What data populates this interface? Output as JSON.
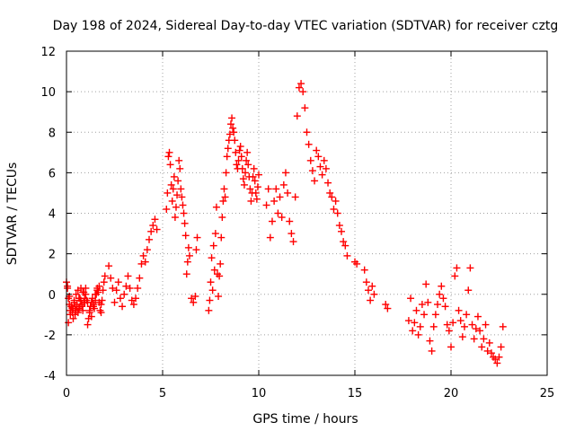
{
  "chart_data": {
    "type": "scatter",
    "title": "Day 198 of 2024, Sidereal Day-to-day VTEC variation (SDTVAR) for receiver cztg",
    "xlabel": "GPS time / hours",
    "ylabel": "SDTVAR / TECUs",
    "xlim": [
      0,
      25
    ],
    "ylim": [
      -4,
      12
    ],
    "xticks": [
      0,
      5,
      10,
      15,
      20,
      25
    ],
    "yticks": [
      -4,
      -2,
      0,
      2,
      4,
      6,
      8,
      10,
      12
    ],
    "grid": true,
    "marker": "+",
    "color": "#ff0000",
    "series": [
      {
        "name": "SDTVAR",
        "x": [
          0.0,
          0.05,
          0.1,
          0.15,
          0.2,
          0.25,
          0.3,
          0.35,
          0.4,
          0.45,
          0.5,
          0.55,
          0.6,
          0.65,
          0.7,
          0.75,
          0.8,
          0.85,
          0.9,
          0.95,
          1.0,
          1.05,
          1.1,
          1.15,
          1.2,
          1.25,
          1.3,
          1.35,
          1.4,
          1.45,
          1.5,
          1.55,
          1.6,
          1.65,
          1.7,
          1.75,
          1.8,
          1.85,
          1.9,
          1.95,
          2.0,
          0.1,
          0.2,
          0.3,
          0.4,
          0.5,
          0.6,
          0.7,
          0.8,
          0.9,
          1.0,
          1.1,
          1.2,
          1.3,
          1.4,
          1.5,
          1.6,
          1.7,
          1.8,
          0.05,
          0.15,
          0.25,
          0.35,
          0.45,
          0.55,
          0.65,
          0.75,
          0.85,
          0.95,
          2.2,
          2.3,
          2.4,
          2.5,
          2.6,
          2.7,
          2.8,
          2.9,
          3.0,
          3.1,
          3.2,
          3.3,
          3.4,
          3.5,
          3.6,
          3.7,
          3.8,
          3.9,
          4.0,
          4.1,
          4.2,
          4.3,
          4.4,
          4.5,
          4.6,
          4.7,
          5.2,
          5.25,
          5.3,
          5.35,
          5.4,
          5.45,
          5.5,
          5.55,
          5.6,
          5.65,
          5.7,
          5.75,
          5.8,
          5.85,
          5.9,
          5.95,
          6.0,
          6.05,
          6.1,
          6.15,
          6.2,
          6.25,
          6.3,
          6.35,
          6.4,
          6.5,
          6.6,
          6.7,
          6.75,
          6.8,
          7.4,
          7.45,
          7.5,
          7.55,
          7.6,
          7.65,
          7.7,
          7.75,
          7.8,
          7.85,
          7.9,
          7.95,
          8.0,
          8.05,
          8.1,
          8.15,
          8.2,
          8.25,
          8.3,
          8.35,
          8.4,
          8.45,
          8.5,
          8.55,
          8.6,
          8.65,
          8.7,
          8.75,
          8.8,
          8.85,
          8.9,
          8.95,
          9.0,
          9.05,
          9.1,
          9.15,
          9.2,
          9.25,
          9.3,
          9.35,
          9.4,
          9.45,
          9.5,
          9.55,
          9.6,
          9.65,
          9.7,
          9.75,
          9.8,
          9.85,
          9.9,
          9.95,
          10.0,
          10.4,
          10.5,
          10.6,
          10.7,
          10.8,
          10.9,
          11.0,
          11.1,
          11.2,
          11.3,
          11.4,
          11.5,
          11.6,
          11.7,
          11.8,
          11.9,
          12.0,
          12.1,
          12.2,
          12.3,
          12.4,
          12.5,
          12.6,
          12.7,
          12.8,
          12.9,
          13.0,
          13.1,
          13.2,
          13.3,
          13.4,
          13.5,
          13.6,
          13.7,
          13.8,
          13.9,
          14.0,
          14.1,
          14.2,
          14.3,
          14.4,
          14.5,
          14.6,
          15.0,
          15.1,
          15.5,
          15.6,
          15.7,
          15.8,
          15.9,
          16.0,
          16.6,
          16.7,
          17.8,
          17.9,
          18.0,
          18.1,
          18.2,
          18.3,
          18.4,
          18.5,
          18.6,
          18.7,
          18.8,
          18.9,
          19.0,
          19.1,
          19.2,
          19.3,
          19.4,
          19.5,
          19.6,
          19.7,
          19.8,
          19.9,
          20.0,
          20.1,
          20.2,
          20.3,
          20.4,
          20.5,
          20.6,
          20.7,
          20.8,
          20.9,
          21.0,
          21.1,
          21.2,
          21.3,
          21.4,
          21.5,
          21.6,
          21.7,
          21.8,
          21.9,
          22.0,
          22.1,
          22.2,
          22.3,
          22.4,
          22.5,
          22.6,
          22.7
        ],
        "y": [
          0.6,
          0.3,
          -0.2,
          -0.5,
          -0.8,
          -0.6,
          -0.9,
          -0.7,
          -0.4,
          -0.6,
          -0.8,
          -0.5,
          -0.9,
          -0.7,
          -0.6,
          -0.3,
          -0.5,
          -0.8,
          -0.4,
          -0.2,
          0.0,
          -0.3,
          -1.5,
          -1.2,
          -0.9,
          -0.6,
          -0.4,
          -0.2,
          -0.5,
          -0.7,
          -0.3,
          0.0,
          0.3,
          0.1,
          0.4,
          -0.8,
          -0.5,
          -0.3,
          0.2,
          0.6,
          0.9,
          -1.4,
          -1.0,
          -0.7,
          -0.3,
          0.0,
          0.2,
          -0.2,
          -0.6,
          0.1,
          0.3,
          -0.4,
          -0.8,
          -1.1,
          -0.6,
          0.0,
          0.2,
          -0.4,
          -0.9,
          0.4,
          -0.1,
          -0.6,
          -1.2,
          -1.0,
          -0.6,
          -0.2,
          0.3,
          0.1,
          -0.4,
          1.4,
          0.8,
          0.3,
          -0.4,
          0.2,
          0.6,
          -0.2,
          -0.6,
          0.0,
          0.4,
          0.9,
          0.3,
          -0.3,
          -0.5,
          -0.2,
          0.3,
          0.8,
          1.5,
          1.9,
          1.6,
          2.2,
          2.7,
          3.1,
          3.4,
          3.7,
          3.2,
          4.2,
          5.0,
          6.8,
          7.0,
          6.4,
          5.4,
          4.6,
          5.2,
          5.8,
          3.8,
          4.3,
          4.9,
          5.6,
          6.6,
          6.2,
          5.2,
          4.8,
          4.4,
          4.0,
          3.5,
          2.9,
          1.0,
          1.6,
          2.3,
          1.9,
          -0.2,
          -0.4,
          -0.1,
          2.2,
          2.8,
          -0.8,
          -0.3,
          0.6,
          1.8,
          0.2,
          2.4,
          1.2,
          3.0,
          4.3,
          1.0,
          -0.1,
          0.9,
          1.5,
          2.8,
          3.8,
          4.6,
          5.2,
          4.8,
          6.0,
          6.8,
          7.2,
          7.6,
          7.9,
          8.4,
          8.7,
          8.2,
          8.0,
          7.6,
          7.0,
          6.4,
          6.2,
          6.6,
          7.1,
          7.3,
          6.8,
          6.2,
          5.7,
          5.4,
          6.0,
          6.6,
          7.0,
          6.4,
          5.8,
          5.2,
          4.6,
          5.0,
          5.8,
          6.2,
          5.6,
          5.0,
          4.7,
          5.3,
          5.9,
          4.4,
          5.2,
          2.8,
          3.6,
          4.6,
          5.2,
          4.0,
          4.8,
          3.8,
          5.4,
          6.0,
          5.0,
          3.6,
          3.0,
          2.6,
          4.8,
          8.8,
          10.2,
          10.4,
          10.0,
          9.2,
          8.0,
          7.4,
          6.6,
          6.1,
          5.6,
          7.1,
          6.8,
          6.3,
          5.9,
          6.6,
          6.2,
          5.5,
          5.0,
          4.8,
          4.2,
          4.6,
          4.0,
          3.4,
          3.1,
          2.6,
          2.4,
          1.9,
          1.6,
          1.5,
          1.2,
          0.6,
          0.2,
          -0.3,
          0.4,
          0.0,
          -0.5,
          -0.7,
          -1.3,
          -0.2,
          -1.8,
          -1.4,
          -0.8,
          -2.0,
          -1.6,
          -0.5,
          -1.0,
          0.5,
          -0.4,
          -2.3,
          -2.8,
          -1.6,
          -1.0,
          -0.5,
          0.0,
          0.4,
          -0.2,
          -0.6,
          -1.5,
          -1.8,
          -2.6,
          -1.4,
          0.9,
          1.3,
          -0.8,
          -1.3,
          -2.1,
          -1.6,
          -1.0,
          0.2,
          1.3,
          -1.5,
          -2.2,
          -1.7,
          -1.1,
          -1.8,
          -2.6,
          -2.2,
          -1.5,
          -2.8,
          -2.4,
          -2.9,
          -3.1,
          -3.2,
          -3.4,
          -3.1,
          -2.6,
          -1.6
        ]
      }
    ]
  }
}
